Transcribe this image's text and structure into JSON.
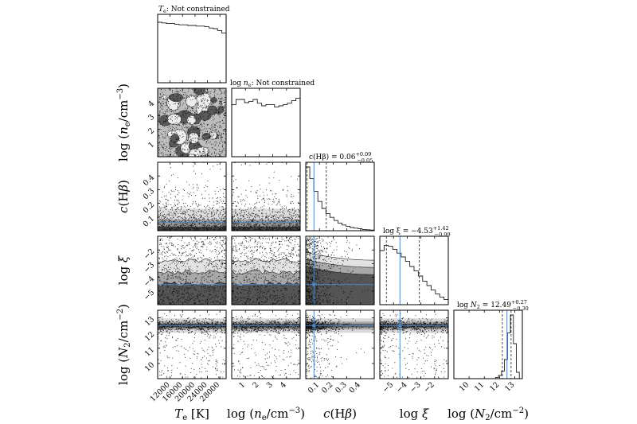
{
  "chart_data": {
    "type": "corner",
    "parameters": [
      {
        "key": "Te",
        "axis_label": "T_e [K]",
        "title": "T_e: Not constrained",
        "range": [
          8000,
          30000
        ],
        "ticks": [
          12000,
          16000,
          20000,
          24000,
          28000
        ],
        "tick_labels": [
          "12000",
          "16000",
          "20000",
          "24000",
          "28000"
        ]
      },
      {
        "key": "log_ne",
        "axis_label": "log (n_e/cm^-3)",
        "title": "log n_e: Not constrained",
        "range": [
          0,
          5
        ],
        "ticks": [
          1,
          2,
          3,
          4
        ],
        "tick_labels": [
          "1",
          "2",
          "3",
          "4"
        ]
      },
      {
        "key": "cHbeta",
        "axis_label": "c(Hβ)",
        "title": "c(Hβ) = 0.06 +0.09 −0.05",
        "median": 0.06,
        "err_plus": 0.09,
        "err_minus": 0.05,
        "range": [
          0,
          0.5
        ],
        "ticks": [
          0.1,
          0.2,
          0.3,
          0.4
        ],
        "tick_labels": [
          "0.1",
          "0.2",
          "0.3",
          "0.4"
        ]
      },
      {
        "key": "log_xi",
        "axis_label": "log ξ",
        "title": "log ξ = −4.53 +1.42 −0.99",
        "median": -4.53,
        "err_plus": 1.42,
        "err_minus": 0.99,
        "range": [
          -6,
          -1
        ],
        "ticks": [
          -5,
          -4,
          -3,
          -2
        ],
        "tick_labels": [
          "−5",
          "−4",
          "−3",
          "−2"
        ]
      },
      {
        "key": "log_N2",
        "axis_label": "log (N_2/cm^-2)",
        "title": "log N_2 = 12.49 +0.27 −0.30",
        "median": 12.49,
        "err_plus": 0.27,
        "err_minus": 0.3,
        "range": [
          9,
          13.5
        ],
        "ticks": [
          10,
          11,
          12,
          13
        ],
        "tick_labels": [
          "10",
          "11",
          "12",
          "13"
        ]
      }
    ],
    "truths": {
      "cHbeta": 0.06,
      "log_xi": -4.53,
      "log_N2": 12.49
    },
    "truth_color": "#4a86c8",
    "histograms": {
      "Te": [
        0.95,
        0.94,
        0.93,
        0.93,
        0.92,
        0.91,
        0.91,
        0.9,
        0.9,
        0.89,
        0.89,
        0.88,
        0.86,
        0.85,
        0.82,
        0.78
      ],
      "log_ne": [
        0.82,
        0.9,
        0.9,
        0.85,
        0.87,
        0.9,
        0.84,
        0.8,
        0.82,
        0.82,
        0.78,
        0.8,
        0.82,
        0.84,
        0.88,
        0.92
      ],
      "cHbeta": [
        1.0,
        0.82,
        0.62,
        0.46,
        0.35,
        0.27,
        0.21,
        0.16,
        0.12,
        0.09,
        0.07,
        0.05,
        0.04,
        0.03,
        0.02,
        0.015,
        0.01
      ],
      "log_xi": [
        0.85,
        0.93,
        0.92,
        0.87,
        0.81,
        0.75,
        0.68,
        0.6,
        0.53,
        0.45,
        0.37,
        0.3,
        0.23,
        0.17,
        0.12,
        0.08
      ],
      "log_N2": [
        0,
        0,
        0,
        0,
        0,
        0,
        0,
        0,
        0,
        0,
        0,
        0,
        0,
        0,
        0.02,
        0.05,
        0.12,
        0.3,
        0.72,
        1.0,
        0.55,
        0.1,
        0
      ]
    }
  }
}
